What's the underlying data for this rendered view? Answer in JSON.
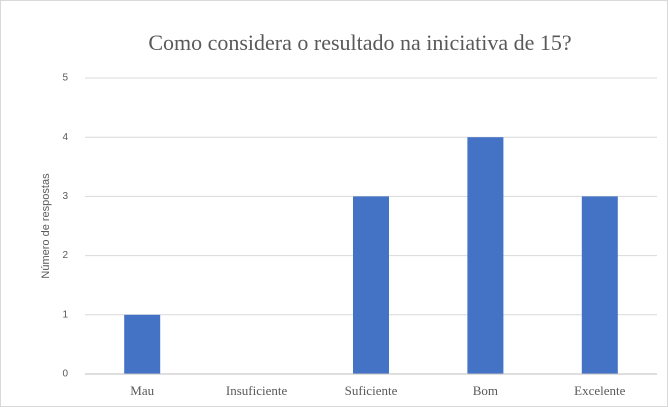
{
  "chart_data": {
    "type": "bar",
    "title": "Como considera o resultado na iniciativa de 15?",
    "y_label": "Número de respostas",
    "categories": [
      "Mau",
      "Insuficiente",
      "Suficiente",
      "Bom",
      "Excelente"
    ],
    "values": [
      1,
      0,
      3,
      4,
      3
    ],
    "color": "#4472c4",
    "ylim": [
      0,
      5
    ],
    "yticks": [
      0,
      1,
      2,
      3,
      4,
      5
    ],
    "grid": true
  }
}
